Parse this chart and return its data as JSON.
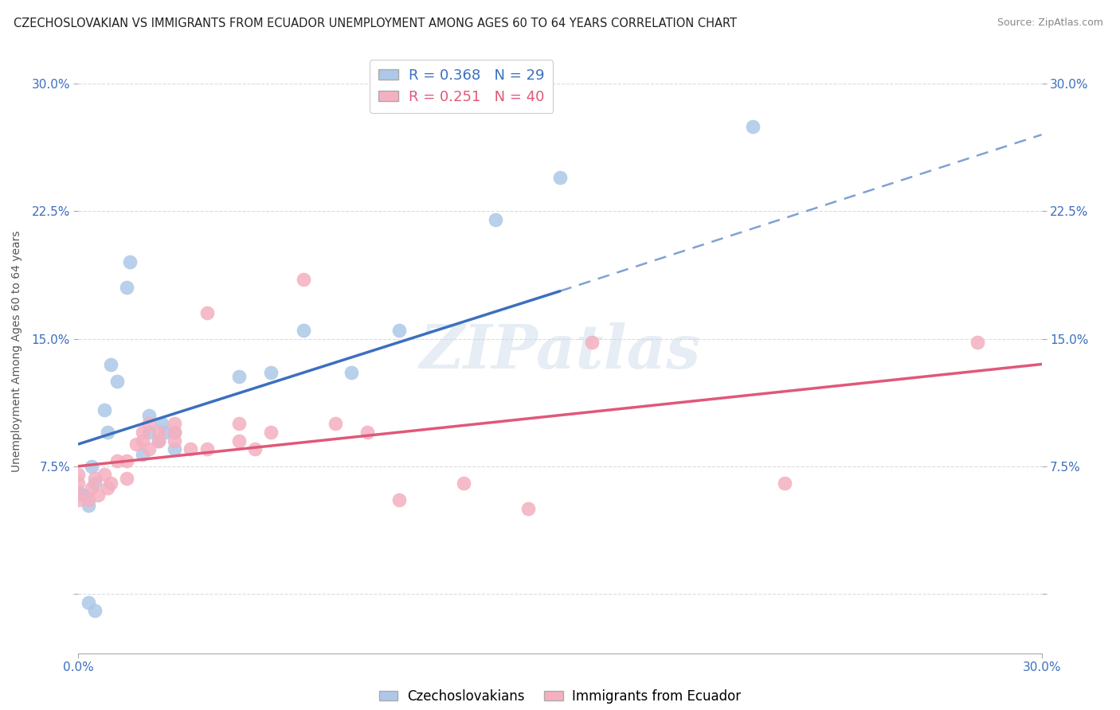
{
  "title": "CZECHOSLOVAKIAN VS IMMIGRANTS FROM ECUADOR UNEMPLOYMENT AMONG AGES 60 TO 64 YEARS CORRELATION CHART",
  "source": "Source: ZipAtlas.com",
  "ylabel": "Unemployment Among Ages 60 to 64 years",
  "xlim": [
    0.0,
    0.3
  ],
  "ylim": [
    -0.035,
    0.32
  ],
  "yticks": [
    0.0,
    0.075,
    0.15,
    0.225,
    0.3
  ],
  "ytick_labels": [
    "",
    "7.5%",
    "15.0%",
    "22.5%",
    "30.0%"
  ],
  "xticks": [
    0.0,
    0.3
  ],
  "xtick_labels": [
    "0.0%",
    "30.0%"
  ],
  "r_czech": 0.368,
  "n_czech": 29,
  "r_ecuador": 0.251,
  "n_ecuador": 40,
  "color_czech": "#adc8e8",
  "color_ecuador": "#f5b0c0",
  "line_color_czech": "#3c6fbe",
  "line_color_ecuador": "#e05878",
  "legend_label_czech": "Czechoslovakians",
  "legend_label_ecuador": "Immigrants from Ecuador",
  "czech_scatter": [
    [
      0.0,
      0.06
    ],
    [
      0.002,
      0.058
    ],
    [
      0.003,
      0.052
    ],
    [
      0.003,
      -0.005
    ],
    [
      0.004,
      0.075
    ],
    [
      0.005,
      0.065
    ],
    [
      0.005,
      -0.01
    ],
    [
      0.008,
      0.108
    ],
    [
      0.009,
      0.095
    ],
    [
      0.01,
      0.135
    ],
    [
      0.012,
      0.125
    ],
    [
      0.015,
      0.18
    ],
    [
      0.016,
      0.195
    ],
    [
      0.02,
      0.082
    ],
    [
      0.022,
      0.095
    ],
    [
      0.022,
      0.105
    ],
    [
      0.025,
      0.09
    ],
    [
      0.026,
      0.1
    ],
    [
      0.027,
      0.095
    ],
    [
      0.03,
      0.095
    ],
    [
      0.03,
      0.085
    ],
    [
      0.05,
      0.128
    ],
    [
      0.06,
      0.13
    ],
    [
      0.07,
      0.155
    ],
    [
      0.085,
      0.13
    ],
    [
      0.1,
      0.155
    ],
    [
      0.13,
      0.22
    ],
    [
      0.15,
      0.245
    ],
    [
      0.21,
      0.275
    ]
  ],
  "ecuador_scatter": [
    [
      0.0,
      0.058
    ],
    [
      0.0,
      0.065
    ],
    [
      0.0,
      0.055
    ],
    [
      0.0,
      0.07
    ],
    [
      0.003,
      0.055
    ],
    [
      0.004,
      0.062
    ],
    [
      0.005,
      0.068
    ],
    [
      0.006,
      0.058
    ],
    [
      0.008,
      0.07
    ],
    [
      0.009,
      0.062
    ],
    [
      0.01,
      0.065
    ],
    [
      0.012,
      0.078
    ],
    [
      0.015,
      0.068
    ],
    [
      0.015,
      0.078
    ],
    [
      0.018,
      0.088
    ],
    [
      0.02,
      0.095
    ],
    [
      0.02,
      0.09
    ],
    [
      0.022,
      0.1
    ],
    [
      0.022,
      0.085
    ],
    [
      0.025,
      0.095
    ],
    [
      0.025,
      0.09
    ],
    [
      0.03,
      0.09
    ],
    [
      0.03,
      0.1
    ],
    [
      0.03,
      0.095
    ],
    [
      0.035,
      0.085
    ],
    [
      0.04,
      0.085
    ],
    [
      0.04,
      0.165
    ],
    [
      0.05,
      0.1
    ],
    [
      0.05,
      0.09
    ],
    [
      0.055,
      0.085
    ],
    [
      0.06,
      0.095
    ],
    [
      0.07,
      0.185
    ],
    [
      0.08,
      0.1
    ],
    [
      0.09,
      0.095
    ],
    [
      0.1,
      0.055
    ],
    [
      0.12,
      0.065
    ],
    [
      0.14,
      0.05
    ],
    [
      0.16,
      0.148
    ],
    [
      0.22,
      0.065
    ],
    [
      0.28,
      0.148
    ]
  ],
  "czech_line": [
    [
      0.0,
      0.088
    ],
    [
      0.3,
      0.27
    ]
  ],
  "czech_line_solid": [
    [
      0.0,
      0.088
    ],
    [
      0.15,
      0.178
    ]
  ],
  "czech_line_dashed": [
    [
      0.15,
      0.178
    ],
    [
      0.3,
      0.27
    ]
  ],
  "ecuador_line": [
    [
      0.0,
      0.075
    ],
    [
      0.3,
      0.135
    ]
  ],
  "background_color": "#ffffff",
  "grid_color": "#cccccc",
  "watermark": "ZIPatlas",
  "title_fontsize": 10.5,
  "axis_label_fontsize": 10,
  "tick_fontsize": 11,
  "legend_fontsize": 13
}
